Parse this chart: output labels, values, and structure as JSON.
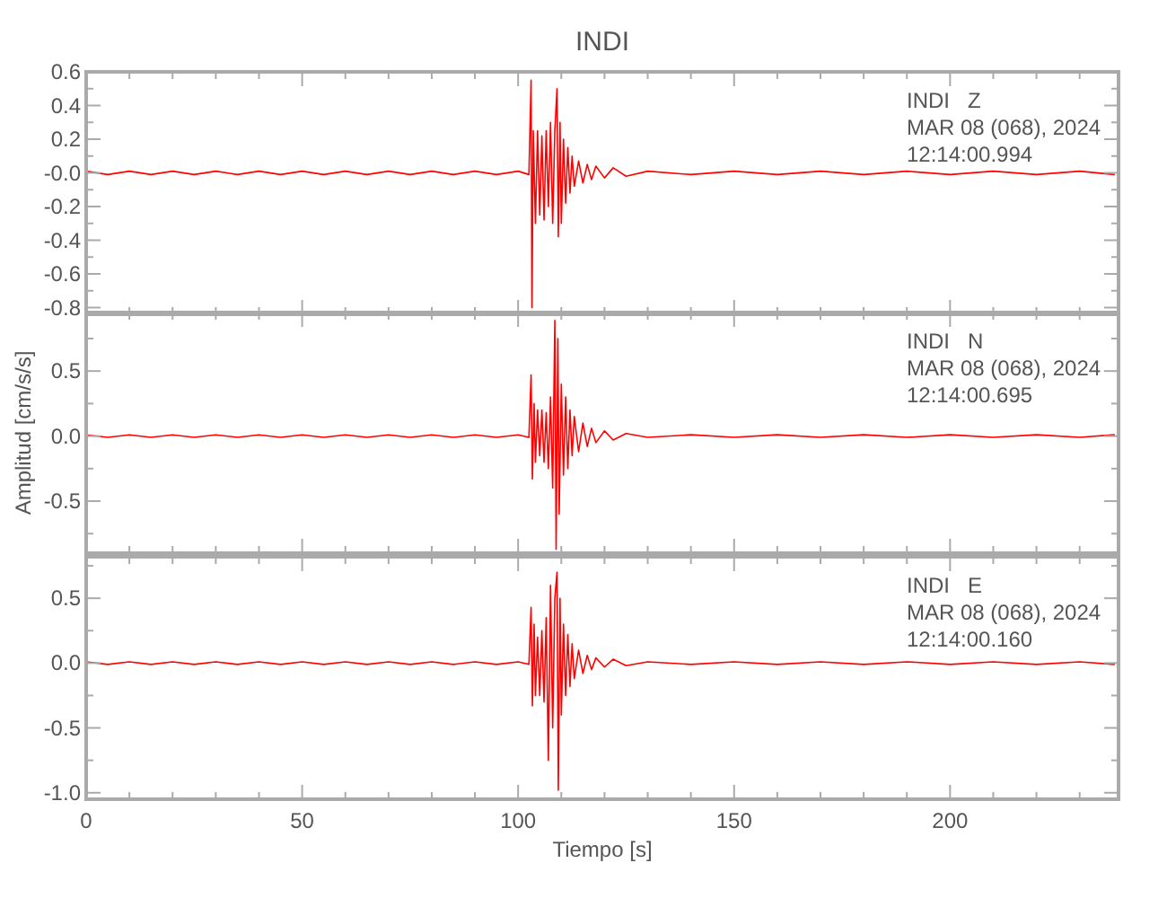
{
  "chart_data": [
    {
      "type": "line",
      "title": "INDI",
      "annotations": [
        "INDI   Z",
        "MAR 08 (068), 2024",
        "12:14:00.994"
      ],
      "xlim": [
        0,
        239
      ],
      "xticks": [
        0,
        {
          "value": 10,
          "label": null
        },
        {
          "value": 20,
          "label": null
        },
        {
          "value": 30,
          "label": null
        },
        {
          "value": 40,
          "label": null
        },
        50,
        {
          "value": 60,
          "label": null
        },
        {
          "value": 70,
          "label": null
        },
        {
          "value": 80,
          "label": null
        },
        {
          "value": 90,
          "label": null
        },
        100,
        {
          "value": 110,
          "label": null
        },
        {
          "value": 120,
          "label": null
        },
        {
          "value": 130,
          "label": null
        },
        {
          "value": 140,
          "label": null
        },
        150,
        {
          "value": 160,
          "label": null
        },
        {
          "value": 170,
          "label": null
        },
        {
          "value": 180,
          "label": null
        },
        {
          "value": 190,
          "label": null
        },
        200,
        {
          "value": 210,
          "label": null
        },
        {
          "value": 220,
          "label": null
        },
        {
          "value": 230,
          "label": null
        }
      ],
      "ylim": [
        -0.84,
        0.6
      ],
      "yticks": [
        0.6,
        {
          "value": 0.5,
          "label": null
        },
        0.4,
        {
          "value": 0.3,
          "label": null
        },
        0.2,
        {
          "value": 0.1,
          "label": null
        },
        {
          "value": 0,
          "label": "-0.0"
        },
        {
          "value": -0.1,
          "label": null
        },
        -0.2,
        {
          "value": -0.3,
          "label": null
        },
        -0.4,
        {
          "value": -0.5,
          "label": null
        },
        -0.6,
        {
          "value": -0.7,
          "label": null
        },
        -0.8
      ],
      "tick_labels": "y",
      "series": [
        {
          "color": "#ff0000",
          "x": [
            0,
            5,
            10,
            15,
            20,
            25,
            30,
            35,
            40,
            45,
            50,
            55,
            60,
            65,
            70,
            75,
            80,
            85,
            90,
            95,
            100,
            102.5,
            103,
            103.2,
            103.5,
            104,
            104.5,
            105,
            105.5,
            106,
            106.5,
            107,
            107.5,
            108,
            108.5,
            109,
            109.3,
            109.7,
            110,
            110.5,
            111,
            111.5,
            112,
            112.5,
            113,
            114,
            115,
            116,
            117,
            118,
            120,
            122,
            125,
            130,
            140,
            150,
            160,
            170,
            180,
            190,
            200,
            210,
            220,
            230,
            238
          ],
          "values": [
            0.01,
            -0.01,
            0.01,
            -0.01,
            0.01,
            -0.01,
            0.01,
            -0.01,
            0.01,
            -0.01,
            0.01,
            -0.01,
            0.01,
            -0.01,
            0.01,
            -0.01,
            0.01,
            -0.01,
            0.01,
            -0.01,
            0.01,
            -0.01,
            0.55,
            -0.8,
            0.25,
            -0.3,
            0.25,
            -0.25,
            0.22,
            -0.28,
            0.25,
            -0.2,
            0.3,
            -0.3,
            0.25,
            0.5,
            -0.38,
            0.3,
            -0.3,
            0.2,
            -0.18,
            0.15,
            -0.12,
            0.1,
            -0.08,
            0.07,
            -0.06,
            0.05,
            -0.04,
            0.04,
            -0.03,
            0.03,
            -0.02,
            0.01,
            -0.01,
            0.01,
            -0.01,
            0.01,
            -0.01,
            0.01,
            -0.01,
            0.01,
            -0.01,
            0.01,
            -0.01
          ]
        }
      ]
    },
    {
      "type": "line",
      "ylabel": "Amplitud [cm/s/s]",
      "annotations": [
        "INDI   N",
        "MAR 08 (068), 2024",
        "12:14:00.695"
      ],
      "xlim": [
        0,
        239
      ],
      "xticks": [
        0,
        {
          "value": 10,
          "label": null
        },
        {
          "value": 20,
          "label": null
        },
        {
          "value": 30,
          "label": null
        },
        {
          "value": 40,
          "label": null
        },
        50,
        {
          "value": 60,
          "label": null
        },
        {
          "value": 70,
          "label": null
        },
        {
          "value": 80,
          "label": null
        },
        {
          "value": 90,
          "label": null
        },
        100,
        {
          "value": 110,
          "label": null
        },
        {
          "value": 120,
          "label": null
        },
        {
          "value": 130,
          "label": null
        },
        {
          "value": 140,
          "label": null
        },
        150,
        {
          "value": 160,
          "label": null
        },
        {
          "value": 170,
          "label": null
        },
        {
          "value": 180,
          "label": null
        },
        {
          "value": 190,
          "label": null
        },
        200,
        {
          "value": 210,
          "label": null
        },
        {
          "value": 220,
          "label": null
        },
        {
          "value": 230,
          "label": null
        }
      ],
      "ylim": [
        -0.9,
        0.95
      ],
      "yticks": [
        {
          "value": 0.75,
          "label": null
        },
        0.5,
        {
          "value": 0.25,
          "label": null
        },
        {
          "value": 0,
          "label": "0.0"
        },
        {
          "value": -0.25,
          "label": null
        },
        -0.5,
        {
          "value": -0.75,
          "label": null
        }
      ],
      "tick_labels": "y",
      "series": [
        {
          "color": "#ff0000",
          "x": [
            0,
            5,
            10,
            15,
            20,
            25,
            30,
            35,
            40,
            45,
            50,
            55,
            60,
            65,
            70,
            75,
            80,
            85,
            90,
            95,
            100,
            102.5,
            103,
            103.3,
            103.7,
            104,
            104.5,
            105,
            105.5,
            106,
            106.5,
            107,
            107.5,
            108,
            108.5,
            108.8,
            109.2,
            109.5,
            110,
            110.5,
            111,
            111.5,
            112,
            112.5,
            113,
            114,
            115,
            116,
            117,
            118,
            120,
            122,
            125,
            130,
            140,
            150,
            160,
            170,
            180,
            190,
            200,
            210,
            220,
            230,
            238
          ],
          "values": [
            0.01,
            -0.01,
            0.01,
            -0.01,
            0.01,
            -0.01,
            0.01,
            -0.01,
            0.01,
            -0.01,
            0.01,
            -0.01,
            0.01,
            -0.01,
            0.01,
            -0.01,
            0.01,
            -0.01,
            0.01,
            -0.01,
            0.01,
            -0.01,
            0.47,
            -0.33,
            0.25,
            -0.2,
            0.2,
            -0.15,
            0.2,
            -0.2,
            0.18,
            -0.25,
            0.3,
            -0.4,
            0.89,
            -0.87,
            0.75,
            -0.6,
            0.4,
            -0.3,
            0.3,
            -0.25,
            0.2,
            -0.15,
            0.15,
            -0.12,
            0.1,
            -0.08,
            0.06,
            -0.05,
            0.04,
            -0.03,
            0.02,
            -0.01,
            0.01,
            -0.01,
            0.01,
            -0.01,
            0.01,
            -0.01,
            0.01,
            -0.01,
            0.01,
            -0.01,
            0.01
          ]
        }
      ]
    },
    {
      "type": "line",
      "xlabel": "Tiempo [s]",
      "annotations": [
        "INDI   E",
        "MAR 08 (068), 2024",
        "12:14:00.160"
      ],
      "xlim": [
        0,
        239
      ],
      "xticks": [
        0,
        {
          "value": 10,
          "label": null
        },
        {
          "value": 20,
          "label": null
        },
        {
          "value": 30,
          "label": null
        },
        {
          "value": 40,
          "label": null
        },
        50,
        {
          "value": 60,
          "label": null
        },
        {
          "value": 70,
          "label": null
        },
        {
          "value": 80,
          "label": null
        },
        {
          "value": 90,
          "label": null
        },
        100,
        {
          "value": 110,
          "label": null
        },
        {
          "value": 120,
          "label": null
        },
        {
          "value": 130,
          "label": null
        },
        {
          "value": 140,
          "label": null
        },
        150,
        {
          "value": 160,
          "label": null
        },
        {
          "value": 170,
          "label": null
        },
        {
          "value": 180,
          "label": null
        },
        {
          "value": 190,
          "label": null
        },
        200,
        {
          "value": 210,
          "label": null
        },
        {
          "value": 220,
          "label": null
        },
        {
          "value": 230,
          "label": null
        }
      ],
      "ylim": [
        -1.05,
        0.82
      ],
      "yticks": [
        {
          "value": 0.75,
          "label": null
        },
        0.5,
        {
          "value": 0.25,
          "label": null
        },
        {
          "value": 0,
          "label": "0.0"
        },
        {
          "value": -0.25,
          "label": null
        },
        -0.5,
        {
          "value": -0.75,
          "label": null
        },
        {
          "value": -1,
          "label": "-1.0"
        }
      ],
      "series": [
        {
          "color": "#ff0000",
          "x": [
            0,
            5,
            10,
            15,
            20,
            25,
            30,
            35,
            40,
            45,
            50,
            55,
            60,
            65,
            70,
            75,
            80,
            85,
            90,
            95,
            100,
            102.5,
            103,
            103.3,
            103.7,
            104,
            104.5,
            105,
            105.5,
            106,
            106.5,
            107,
            107.5,
            108,
            108.5,
            109,
            109.3,
            109.7,
            110,
            110.5,
            111,
            111.5,
            112,
            112.5,
            113,
            114,
            115,
            116,
            117,
            118,
            120,
            122,
            125,
            130,
            140,
            150,
            160,
            170,
            180,
            190,
            200,
            210,
            220,
            230,
            238
          ],
          "values": [
            0.01,
            -0.01,
            0.01,
            -0.01,
            0.01,
            -0.01,
            0.01,
            -0.01,
            0.01,
            -0.01,
            0.01,
            -0.01,
            0.01,
            -0.01,
            0.01,
            -0.01,
            0.01,
            -0.01,
            0.01,
            -0.01,
            0.01,
            -0.01,
            0.43,
            -0.33,
            0.3,
            -0.25,
            0.2,
            -0.25,
            0.25,
            -0.3,
            0.35,
            -0.75,
            0.6,
            -0.5,
            0.5,
            0.7,
            -0.98,
            0.5,
            -0.4,
            0.3,
            -0.25,
            0.22,
            -0.18,
            0.15,
            -0.12,
            0.1,
            -0.08,
            0.06,
            -0.05,
            0.04,
            -0.03,
            0.03,
            -0.02,
            0.01,
            -0.01,
            0.01,
            -0.01,
            0.01,
            -0.01,
            0.01,
            -0.01,
            0.01,
            -0.01,
            0.01,
            -0.01
          ]
        }
      ]
    }
  ]
}
